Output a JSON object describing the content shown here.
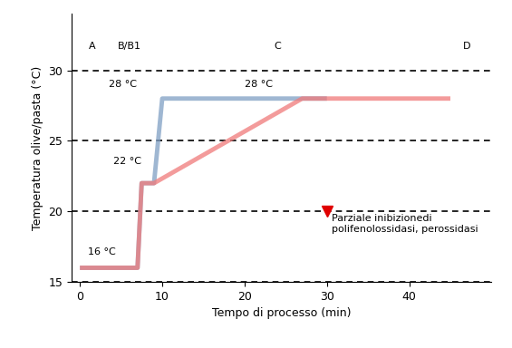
{
  "chart_data": {
    "type": "line",
    "x_label": "Tempo di processo (min)",
    "y_label": "Temperatura olive/pasta (°C)",
    "xlim": [
      -1,
      50
    ],
    "xticks": [
      0,
      10,
      20,
      30,
      40
    ],
    "ylim": [
      15,
      34
    ],
    "yticks": [
      15,
      20,
      25,
      30
    ],
    "grid": true,
    "series": [
      {
        "color": "#7f9fc4",
        "x": [
          0,
          7,
          7.5,
          9,
          10,
          30
        ],
        "values": [
          16,
          16,
          22,
          22,
          28,
          28
        ]
      },
      {
        "color": "#f07a7a",
        "x": [
          0,
          7,
          7.5,
          9,
          27,
          45
        ],
        "values": [
          16,
          16,
          22,
          22,
          28,
          28
        ]
      }
    ],
    "annotations": [
      {
        "text": "16 °C",
        "x": 1,
        "y": 16.8
      },
      {
        "text": "22 °C",
        "x": 4,
        "y": 23.2
      },
      {
        "text": "28 °C",
        "x": 3.5,
        "y": 28.7
      },
      {
        "text": "28 °C",
        "x": 20,
        "y": 28.7
      },
      {
        "text": "Parziale inibizionedi\npolifenolossidasi, perossidasi",
        "x": 30,
        "y": 20,
        "marker": "v",
        "color": "#e00000"
      }
    ],
    "stages": [
      {
        "text": "A",
        "x": 1.5
      },
      {
        "text": "B/B1",
        "x": 6
      },
      {
        "text": "C",
        "x": 24
      },
      {
        "text": "D",
        "x": 47
      }
    ],
    "stage_y": 31.4
  }
}
